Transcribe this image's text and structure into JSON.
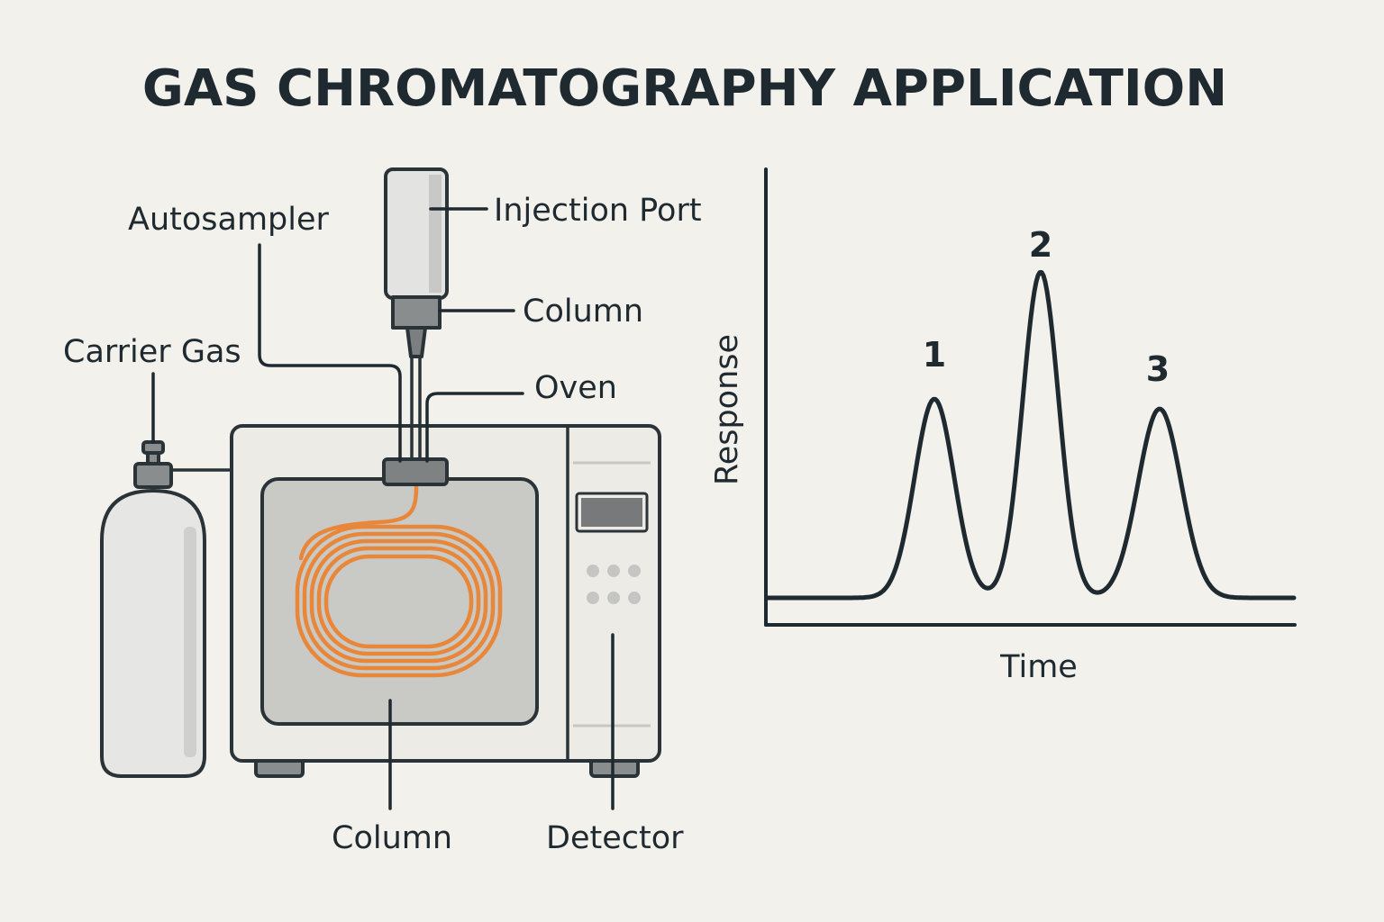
{
  "title": "GAS CHROMATOGRAPHY APPLICATION",
  "labels": {
    "autosampler": "Autosampler",
    "injection_port": "Injection Port",
    "column_top": "Column",
    "oven": "Oven",
    "carrier_gas": "Carrier Gas",
    "column_bottom": "Column",
    "detector": "Detector"
  },
  "chart": {
    "ylabel": "Response",
    "xlabel": "Time",
    "peaks": [
      {
        "label": "1",
        "relative_height": 0.61
      },
      {
        "label": "2",
        "relative_height": 1.0
      },
      {
        "label": "3",
        "relative_height": 0.58
      }
    ]
  },
  "colors": {
    "background": "#f3f1ec",
    "ink": "#1f2a30",
    "column_coil": "#e8873a",
    "oven_body": "#ecebe6",
    "oven_chamber": "#c9c9c6",
    "cylinder": "#e6e6e4"
  }
}
